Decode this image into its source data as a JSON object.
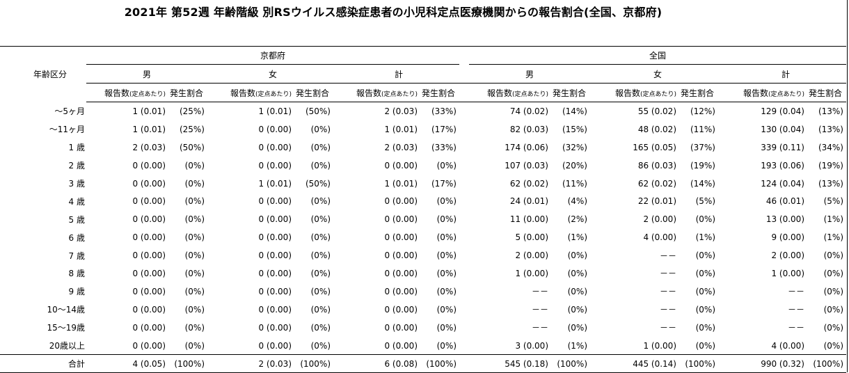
{
  "title": "2021年 第52週 年齢階級 別RSウイルス感染症患者の小児科定点医療機関からの報告割合(全国、京都府)",
  "header": {
    "age_col": "年齢区分",
    "regions": [
      "京都府",
      "全国"
    ],
    "sexes": [
      "男",
      "女",
      "計"
    ],
    "cols": {
      "report": "報告数",
      "per": "(定点あたり)",
      "rate": "発生割合"
    }
  },
  "rows": [
    {
      "age": "～5ヶ月",
      "cells": [
        "1 (0.01)",
        "(25%)",
        "1 (0.01)",
        "(50%)",
        "2 (0.03)",
        "(33%)",
        "74 (0.02)",
        "(14%)",
        "55 (0.02)",
        "(12%)",
        "129 (0.04)",
        "(13%)"
      ]
    },
    {
      "age": "～11ヶ月",
      "cells": [
        "1 (0.01)",
        "(25%)",
        "0 (0.00)",
        "(0%)",
        "1 (0.01)",
        "(17%)",
        "82 (0.03)",
        "(15%)",
        "48 (0.02)",
        "(11%)",
        "130 (0.04)",
        "(13%)"
      ]
    },
    {
      "age": "1 歳",
      "cells": [
        "2 (0.03)",
        "(50%)",
        "0 (0.00)",
        "(0%)",
        "2 (0.03)",
        "(33%)",
        "174 (0.06)",
        "(32%)",
        "165 (0.05)",
        "(37%)",
        "339 (0.11)",
        "(34%)"
      ]
    },
    {
      "age": "2 歳",
      "cells": [
        "0 (0.00)",
        "(0%)",
        "0 (0.00)",
        "(0%)",
        "0 (0.00)",
        "(0%)",
        "107 (0.03)",
        "(20%)",
        "86 (0.03)",
        "(19%)",
        "193 (0.06)",
        "(19%)"
      ]
    },
    {
      "age": "3 歳",
      "cells": [
        "0 (0.00)",
        "(0%)",
        "1 (0.01)",
        "(50%)",
        "1 (0.01)",
        "(17%)",
        "62 (0.02)",
        "(11%)",
        "62 (0.02)",
        "(14%)",
        "124 (0.04)",
        "(13%)"
      ]
    },
    {
      "age": "4 歳",
      "cells": [
        "0 (0.00)",
        "(0%)",
        "0 (0.00)",
        "(0%)",
        "0 (0.00)",
        "(0%)",
        "24 (0.01)",
        "(4%)",
        "22 (0.01)",
        "(5%)",
        "46 (0.01)",
        "(5%)"
      ]
    },
    {
      "age": "5 歳",
      "cells": [
        "0 (0.00)",
        "(0%)",
        "0 (0.00)",
        "(0%)",
        "0 (0.00)",
        "(0%)",
        "11 (0.00)",
        "(2%)",
        "2 (0.00)",
        "(0%)",
        "13 (0.00)",
        "(1%)"
      ]
    },
    {
      "age": "6 歳",
      "cells": [
        "0 (0.00)",
        "(0%)",
        "0 (0.00)",
        "(0%)",
        "0 (0.00)",
        "(0%)",
        "5 (0.00)",
        "(1%)",
        "4 (0.00)",
        "(1%)",
        "9 (0.00)",
        "(1%)"
      ]
    },
    {
      "age": "7 歳",
      "cells": [
        "0 (0.00)",
        "(0%)",
        "0 (0.00)",
        "(0%)",
        "0 (0.00)",
        "(0%)",
        "2 (0.00)",
        "(0%)",
        "－－",
        "(0%)",
        "2 (0.00)",
        "(0%)"
      ]
    },
    {
      "age": "8 歳",
      "cells": [
        "0 (0.00)",
        "(0%)",
        "0 (0.00)",
        "(0%)",
        "0 (0.00)",
        "(0%)",
        "1 (0.00)",
        "(0%)",
        "－－",
        "(0%)",
        "1 (0.00)",
        "(0%)"
      ]
    },
    {
      "age": "9 歳",
      "cells": [
        "0 (0.00)",
        "(0%)",
        "0 (0.00)",
        "(0%)",
        "0 (0.00)",
        "(0%)",
        "－－",
        "(0%)",
        "－－",
        "(0%)",
        "－－",
        "(0%)"
      ]
    },
    {
      "age": "10～14歳",
      "cells": [
        "0 (0.00)",
        "(0%)",
        "0 (0.00)",
        "(0%)",
        "0 (0.00)",
        "(0%)",
        "－－",
        "(0%)",
        "－－",
        "(0%)",
        "－－",
        "(0%)"
      ]
    },
    {
      "age": "15～19歳",
      "cells": [
        "0 (0.00)",
        "(0%)",
        "0 (0.00)",
        "(0%)",
        "0 (0.00)",
        "(0%)",
        "－－",
        "(0%)",
        "－－",
        "(0%)",
        "－－",
        "(0%)"
      ]
    },
    {
      "age": "20歳以上",
      "cells": [
        "0 (0.00)",
        "(0%)",
        "0 (0.00)",
        "(0%)",
        "0 (0.00)",
        "(0%)",
        "3 (0.00)",
        "(1%)",
        "1 (0.00)",
        "(0%)",
        "4 (0.00)",
        "(0%)"
      ]
    }
  ],
  "total": {
    "age": "合計",
    "cells": [
      "4 (0.05)",
      "(100%)",
      "2 (0.03)",
      "(100%)",
      "6 (0.08)",
      "(100%)",
      "545 (0.18)",
      "(100%)",
      "445 (0.14)",
      "(100%)",
      "990 (0.32)",
      "(100%)"
    ]
  }
}
